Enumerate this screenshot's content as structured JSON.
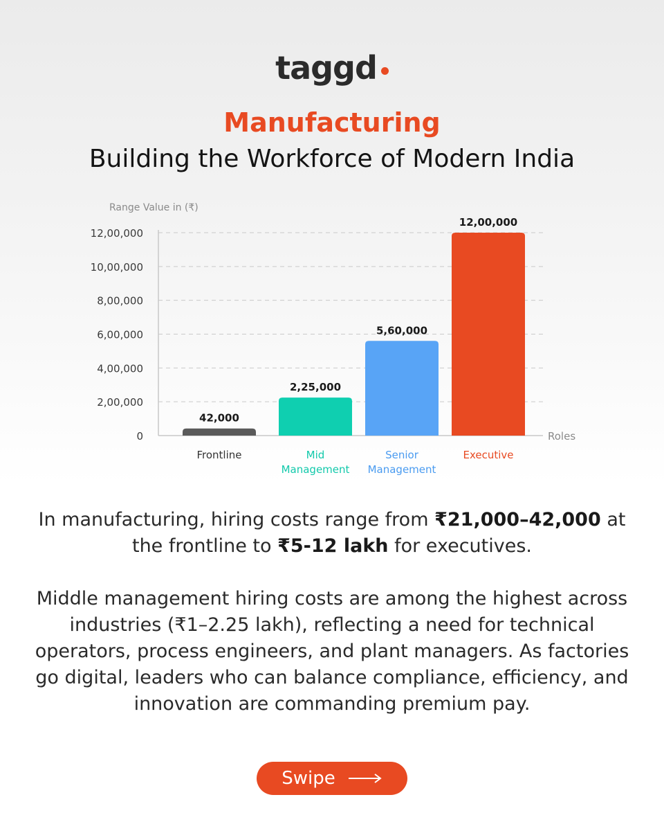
{
  "brand": {
    "name": "taggd"
  },
  "header": {
    "title": "Manufacturing",
    "subtitle": "Building the Workforce of Modern India"
  },
  "chart_data": {
    "type": "bar",
    "ylabel": "Range Value in (₹)",
    "xlabel": "Roles",
    "ylim": [
      0,
      1200000
    ],
    "yticks": [
      0,
      200000,
      400000,
      600000,
      800000,
      1000000,
      1200000
    ],
    "ytick_labels": [
      "0",
      "2,00,000",
      "4,00,000",
      "6,00,000",
      "8,00,000",
      "10,00,000",
      "12,00,000"
    ],
    "grid": true,
    "categories": [
      "Frontline",
      "Mid Management",
      "Senior Management",
      "Executive"
    ],
    "category_lines": [
      [
        "Frontline"
      ],
      [
        "Mid",
        "Management"
      ],
      [
        "Senior",
        "Management"
      ],
      [
        "Executive"
      ]
    ],
    "values": [
      42000,
      225000,
      560000,
      1200000
    ],
    "value_labels": [
      "42,000",
      "2,25,000",
      "5,60,000",
      "12,00,000"
    ],
    "colors": [
      "#5a5a5a",
      "#0fcfb0",
      "#58a4f6",
      "#e84a22"
    ],
    "label_colors": [
      "#333333",
      "#12c9ab",
      "#4a9bf0",
      "#e84a22"
    ]
  },
  "body": {
    "p1": {
      "s1": "In manufacturing, hiring costs range from ",
      "b1": "₹21,000–42,000",
      "s2": " at the frontline to ",
      "b2": "₹5-12 lakh",
      "s3": " for executives."
    },
    "p2": "Middle management hiring costs are among the highest across industries (₹1–2.25 lakh), reflecting a need for technical operators, process engineers, and plant managers. As factories go digital, leaders who can balance compliance, efficiency, and innovation are commanding premium pay."
  },
  "cta": {
    "label": "Swipe",
    "icon": "arrow-right-icon"
  }
}
